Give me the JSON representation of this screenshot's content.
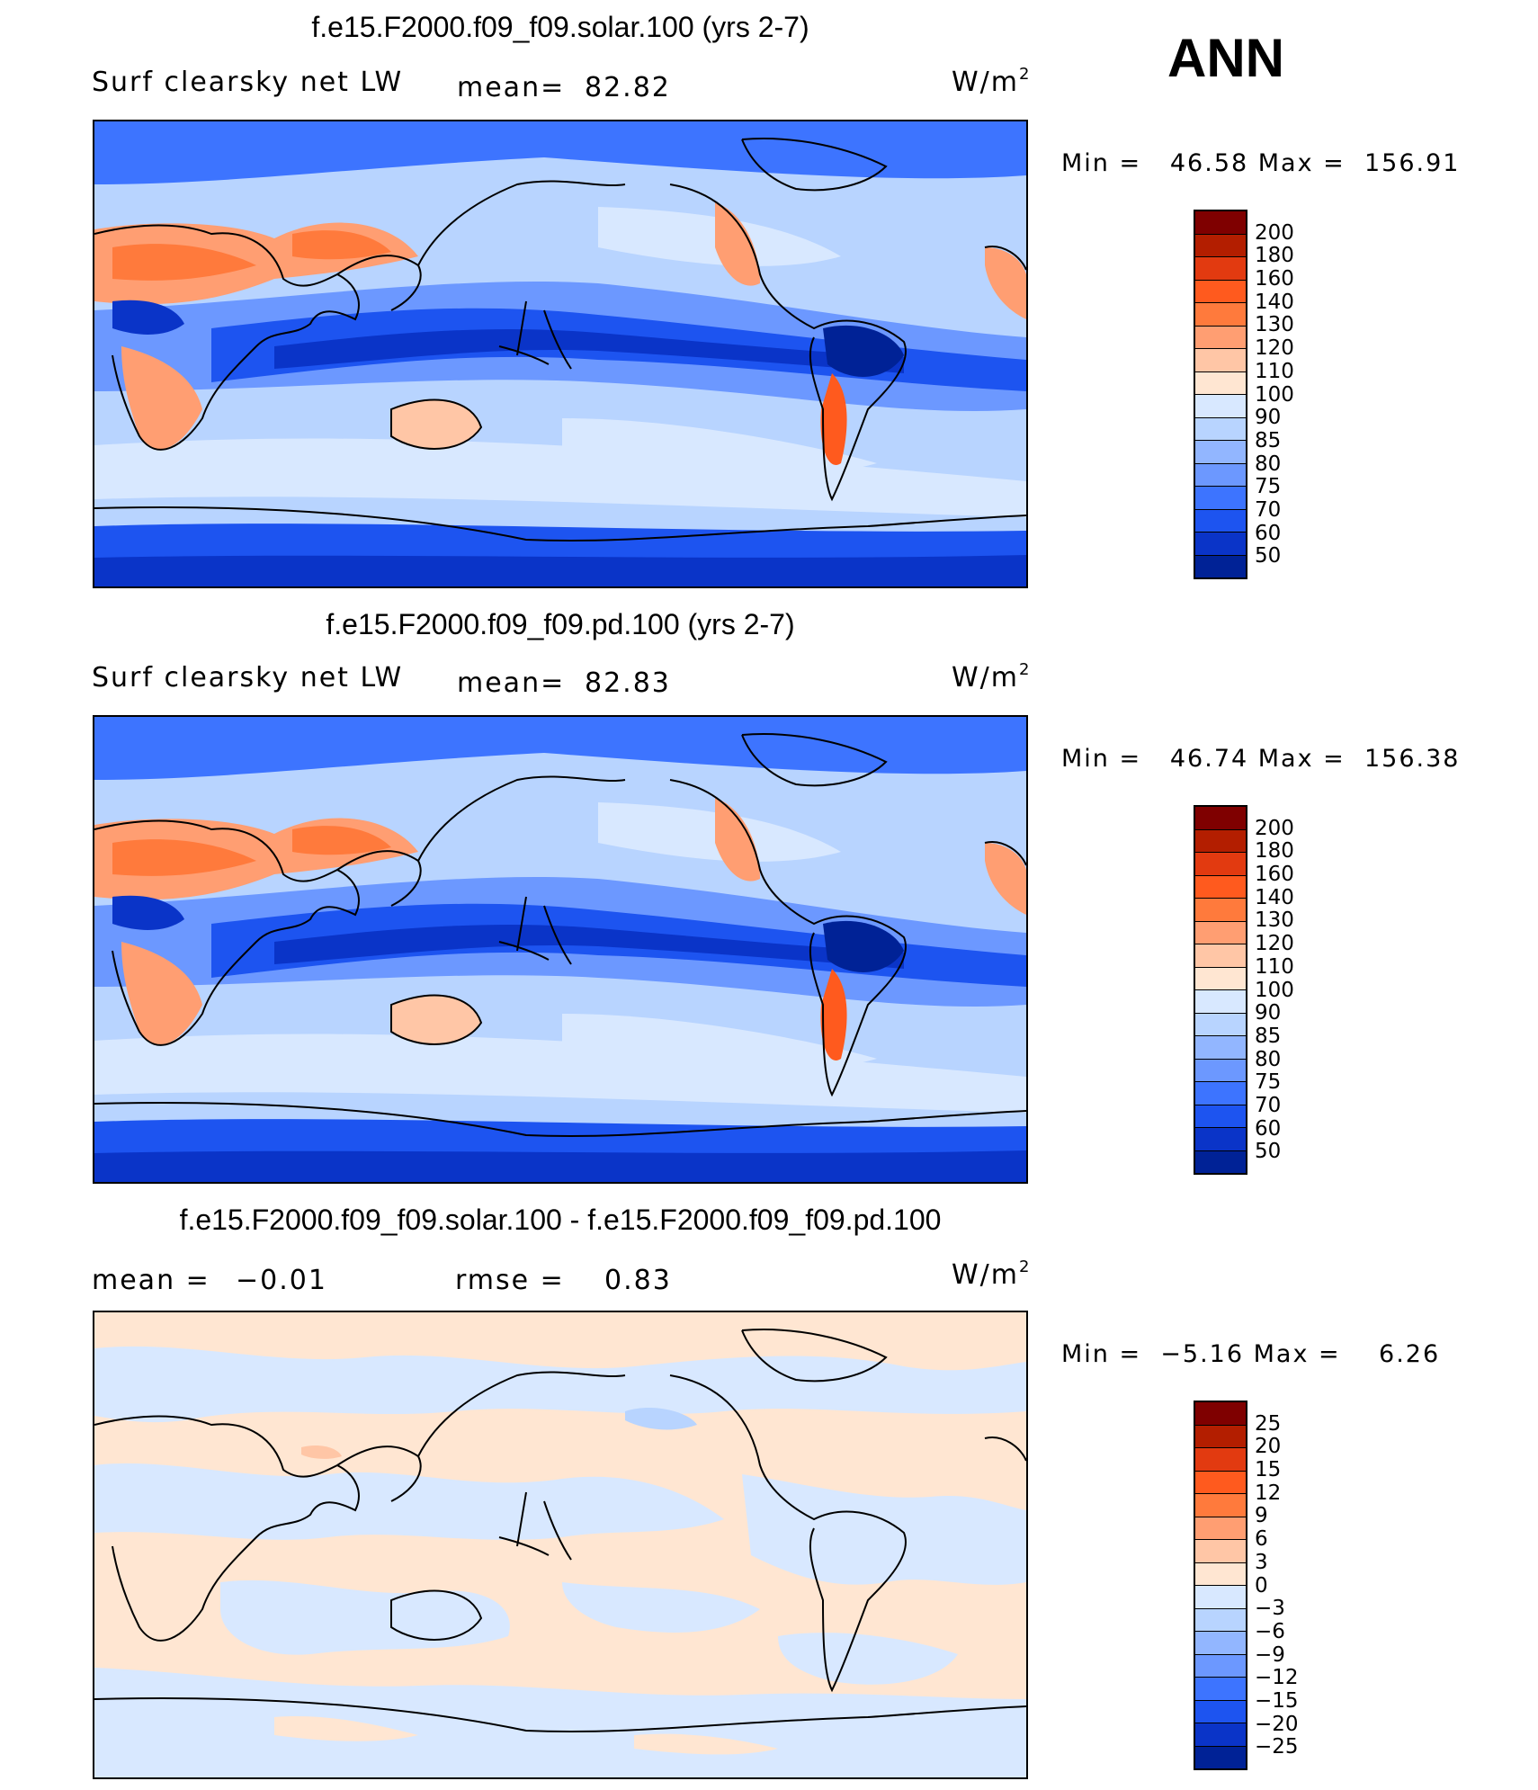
{
  "season": "ANN",
  "panels": [
    {
      "title": "f.e15.F2000.f09_f09.solar.100 (yrs 2-7)",
      "variable": "Surf clearsky net LW",
      "stat_label": "mean=",
      "stat_value": "82.82",
      "units_base": "W/m",
      "units_exp": "2",
      "min_label": "Min =",
      "min_value": "46.58",
      "max_label": "Max =",
      "max_value": "156.91",
      "levels": [
        "200",
        "180",
        "160",
        "140",
        "130",
        "120",
        "110",
        "100",
        "90",
        "85",
        "80",
        "75",
        "70",
        "60",
        "50"
      ],
      "colors": [
        "#7f0000",
        "#b31e00",
        "#e23a10",
        "#ff5a1e",
        "#ff7a3c",
        "#ff9e72",
        "#ffc6a6",
        "#ffe6d2",
        "#d8e8ff",
        "#b8d4ff",
        "#92b6ff",
        "#6c98ff",
        "#3d74ff",
        "#1d54f0",
        "#0a34c8",
        "#002296"
      ]
    },
    {
      "title": "f.e15.F2000.f09_f09.pd.100 (yrs 2-7)",
      "variable": "Surf clearsky net LW",
      "stat_label": "mean=",
      "stat_value": "82.83",
      "units_base": "W/m",
      "units_exp": "2",
      "min_label": "Min =",
      "min_value": "46.74",
      "max_label": "Max =",
      "max_value": "156.38",
      "levels": [
        "200",
        "180",
        "160",
        "140",
        "130",
        "120",
        "110",
        "100",
        "90",
        "85",
        "80",
        "75",
        "70",
        "60",
        "50"
      ],
      "colors": [
        "#7f0000",
        "#b31e00",
        "#e23a10",
        "#ff5a1e",
        "#ff7a3c",
        "#ff9e72",
        "#ffc6a6",
        "#ffe6d2",
        "#d8e8ff",
        "#b8d4ff",
        "#92b6ff",
        "#6c98ff",
        "#3d74ff",
        "#1d54f0",
        "#0a34c8",
        "#002296"
      ]
    },
    {
      "title": "f.e15.F2000.f09_f09.solar.100 - f.e15.F2000.f09_f09.pd.100",
      "stat_label": "mean =",
      "stat_value": "−0.01",
      "rmse_label": "rmse =",
      "rmse_value": "0.83",
      "units_base": "W/m",
      "units_exp": "2",
      "min_label": "Min =",
      "min_value": "−5.16",
      "max_label": "Max =",
      "max_value": "6.26",
      "levels": [
        "25",
        "20",
        "15",
        "12",
        "9",
        "6",
        "3",
        "0",
        "−3",
        "−6",
        "−9",
        "−12",
        "−15",
        "−20",
        "−25"
      ],
      "colors": [
        "#7f0000",
        "#b31e00",
        "#e23a10",
        "#ff5a1e",
        "#ff7a3c",
        "#ff9e72",
        "#ffc6a6",
        "#ffe6d2",
        "#d8e8ff",
        "#b8d4ff",
        "#92b6ff",
        "#6c98ff",
        "#3d74ff",
        "#1d54f0",
        "#0a34c8",
        "#002296"
      ]
    }
  ]
}
